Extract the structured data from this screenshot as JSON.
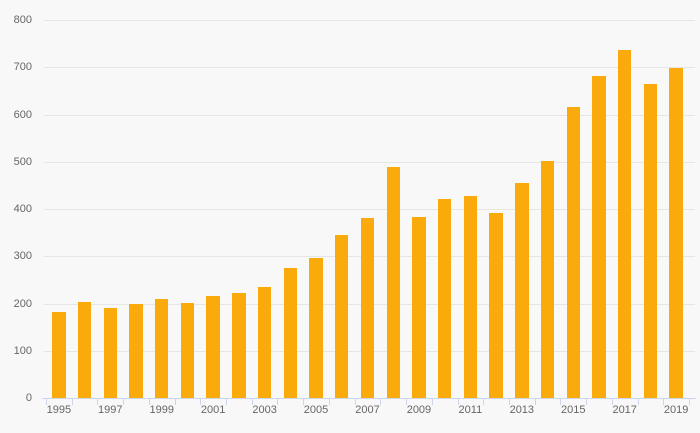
{
  "chart_data": {
    "type": "bar",
    "title": "",
    "xlabel": "",
    "ylabel": "",
    "categories": [
      "1995",
      "1996",
      "1997",
      "1998",
      "1999",
      "2000",
      "2001",
      "2002",
      "2003",
      "2004",
      "2005",
      "2006",
      "2007",
      "2008",
      "2009",
      "2010",
      "2011",
      "2012",
      "2013",
      "2014",
      "2015",
      "2016",
      "2017",
      "2018",
      "2019"
    ],
    "values": [
      182,
      204,
      191,
      200,
      209,
      201,
      215,
      222,
      235,
      276,
      296,
      345,
      382,
      489,
      383,
      422,
      427,
      392,
      456,
      501,
      616,
      682,
      737,
      664,
      698
    ],
    "ylim": [
      0,
      800
    ],
    "ytick_step": 100,
    "ytick_labels": [
      "0",
      "100",
      "200",
      "300",
      "400",
      "500",
      "600",
      "700",
      "800"
    ],
    "x_label_interval": 2,
    "x_labels_shown": [
      "1995",
      "1997",
      "1999",
      "2001",
      "2003",
      "2005",
      "2007",
      "2009",
      "2011",
      "2013",
      "2015",
      "2017",
      "2019"
    ],
    "grid": true,
    "legend": "none",
    "colors": {
      "bar": "#FAAA0A",
      "background": "#F8F8F8",
      "gridline": "#E6E6E6",
      "axis_line": "#CCD6EB",
      "tick": "#CCD6EB",
      "label": "#666666"
    }
  }
}
